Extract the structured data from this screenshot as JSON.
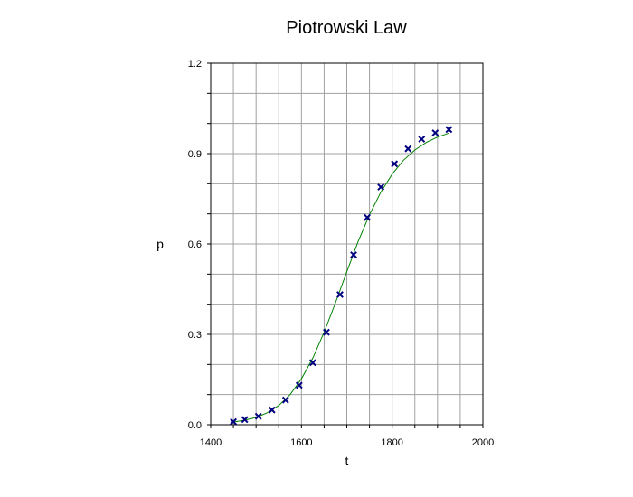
{
  "chart_data": {
    "type": "scatter",
    "title": "Piotrowski Law",
    "xlabel": "t",
    "ylabel": "p",
    "xlim": [
      1400,
      2000
    ],
    "ylim": [
      0.0,
      1.2
    ],
    "x_ticks": [
      1400,
      1600,
      1800,
      2000
    ],
    "x_tick_labels": [
      "1400",
      "1600",
      "1800",
      "2000"
    ],
    "y_ticks": [
      0.0,
      0.3,
      0.6,
      0.9,
      1.2
    ],
    "y_tick_labels": [
      "0.0",
      "0.3",
      "0.6",
      "0.9",
      "1.2"
    ],
    "grid": true,
    "series": [
      {
        "kind": "points",
        "marker": "x",
        "color": "#000080",
        "x": [
          1450,
          1475,
          1505,
          1535,
          1565,
          1595,
          1625,
          1655,
          1685,
          1715,
          1745,
          1775,
          1805,
          1835,
          1865,
          1895,
          1925
        ],
        "y": [
          0.01,
          0.017,
          0.028,
          0.049,
          0.082,
          0.131,
          0.206,
          0.307,
          0.432,
          0.564,
          0.688,
          0.789,
          0.866,
          0.916,
          0.948,
          0.969,
          0.98
        ]
      },
      {
        "kind": "fitted-curve",
        "color": "#008000",
        "x": [
          1450,
          1475,
          1500,
          1525,
          1550,
          1575,
          1600,
          1625,
          1650,
          1675,
          1700,
          1725,
          1750,
          1775,
          1800,
          1825,
          1850,
          1875,
          1900,
          1925
        ],
        "y": [
          0.009,
          0.015,
          0.024,
          0.04,
          0.064,
          0.1,
          0.152,
          0.221,
          0.307,
          0.405,
          0.508,
          0.608,
          0.697,
          0.772,
          0.832,
          0.878,
          0.912,
          0.937,
          0.955,
          0.968
        ]
      }
    ]
  }
}
